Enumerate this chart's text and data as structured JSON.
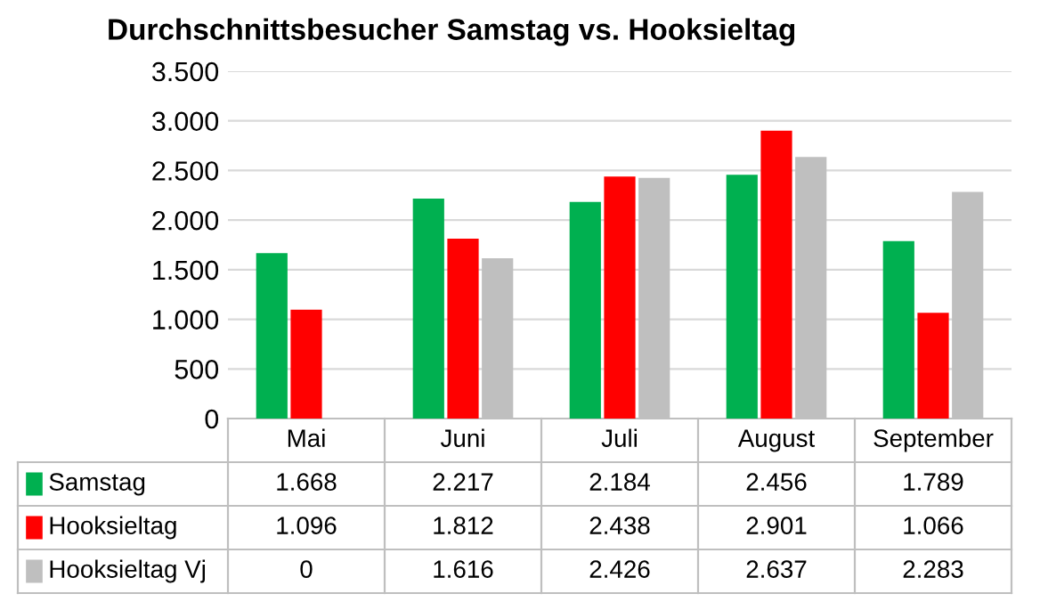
{
  "chart_data": {
    "type": "bar",
    "title": "Durchschnittsbesucher Samstag vs. Hooksieltag",
    "categories": [
      "Mai",
      "Juni",
      "Juli",
      "August",
      "September"
    ],
    "series": [
      {
        "name": "Samstag",
        "color": "#00b050",
        "values": [
          1668,
          2217,
          2184,
          2456,
          1789
        ],
        "value_labels": [
          "1.668",
          "2.217",
          "2.184",
          "2.456",
          "1.789"
        ]
      },
      {
        "name": "Hooksieltag",
        "color": "#ff0000",
        "values": [
          1096,
          1812,
          2438,
          2901,
          1066
        ],
        "value_labels": [
          "1.096",
          "1.812",
          "2.438",
          "2.901",
          "1.066"
        ]
      },
      {
        "name": "Hooksieltag Vj",
        "color": "#bfbfbf",
        "values": [
          0,
          1616,
          2426,
          2637,
          2283
        ],
        "value_labels": [
          "0",
          "1.616",
          "2.426",
          "2.637",
          "2.283"
        ]
      }
    ],
    "ylim": [
      0,
      3500
    ],
    "yticks": [
      0,
      {
        "value": 500,
        "label": "500"
      },
      {
        "value": 1000,
        "label": "1.000"
      },
      {
        "value": 1500,
        "label": "1.500"
      },
      {
        "value": 2000,
        "label": "2.000"
      },
      {
        "value": 2500,
        "label": "2.500"
      },
      {
        "value": 3000,
        "label": "3.000"
      },
      {
        "value": 3500,
        "label": "3.500"
      }
    ],
    "grid": "y",
    "legend": "bottom"
  }
}
